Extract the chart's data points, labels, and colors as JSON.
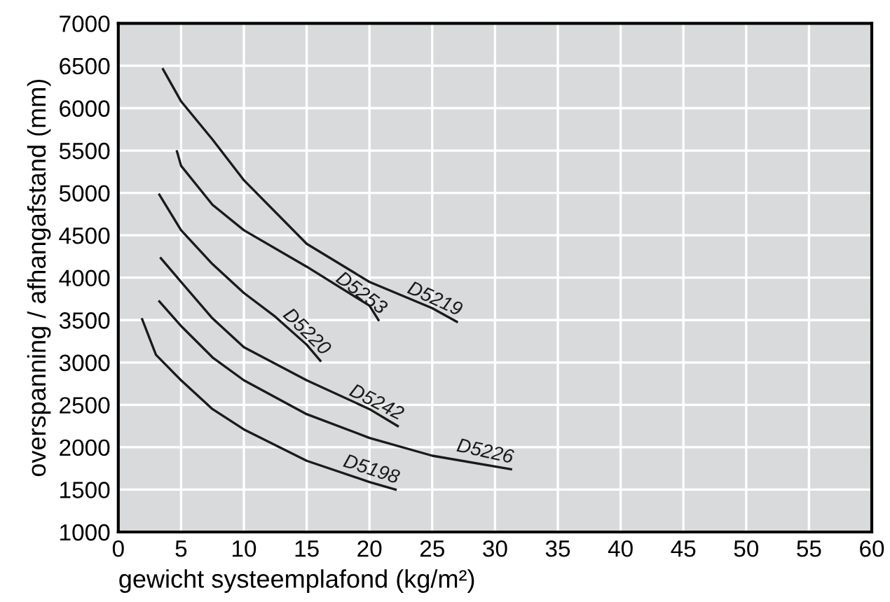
{
  "chart_data": {
    "type": "line",
    "xlabel": "gewicht systeemplafond (kg/m²)",
    "ylabel": "overspanning / afhangafstand (mm)",
    "xlim": [
      0,
      60
    ],
    "ylim": [
      1000,
      7000
    ],
    "xticks": [
      0,
      5,
      10,
      15,
      20,
      25,
      30,
      35,
      40,
      45,
      50,
      55,
      60
    ],
    "yticks": [
      1000,
      1500,
      2000,
      2500,
      3000,
      3500,
      4000,
      4500,
      5000,
      5500,
      6000,
      6500,
      7000
    ],
    "grid": true,
    "legend": false,
    "marker": "none",
    "line_style": "solid",
    "series": [
      {
        "name": "D5219",
        "color": "#1a1a1a",
        "x": [
          3.56,
          5,
          7.5,
          10,
          15,
          20,
          25,
          26.96
        ],
        "values": [
          6460,
          6080,
          5630,
          5150,
          4400,
          3950,
          3640,
          3480
        ]
      },
      {
        "name": "D5253",
        "color": "#1a1a1a",
        "x": [
          4.67,
          5,
          7.5,
          10,
          15,
          20,
          20.72
        ],
        "values": [
          5490,
          5320,
          4860,
          4560,
          4130,
          3670,
          3500
        ]
      },
      {
        "name": "D5220",
        "color": "#1a1a1a",
        "x": [
          3.27,
          5,
          7.5,
          10,
          12.5,
          15,
          16.09
        ],
        "values": [
          4980,
          4560,
          4160,
          3820,
          3540,
          3210,
          3020
        ]
      },
      {
        "name": "D5242",
        "color": "#1a1a1a",
        "x": [
          3.39,
          5,
          7.5,
          10,
          15,
          20,
          22.25
        ],
        "values": [
          4230,
          3950,
          3520,
          3180,
          2790,
          2450,
          2250
        ]
      },
      {
        "name": "D5226",
        "color": "#1a1a1a",
        "x": [
          3.27,
          5,
          7.5,
          10,
          15,
          20,
          25,
          31.27
        ],
        "values": [
          3720,
          3430,
          3060,
          2790,
          2390,
          2110,
          1900,
          1740
        ]
      },
      {
        "name": "D5198",
        "color": "#1a1a1a",
        "x": [
          1.9,
          3,
          5,
          7.5,
          10,
          15,
          20,
          22.08
        ],
        "values": [
          3510,
          3090,
          2790,
          2450,
          2210,
          1840,
          1590,
          1500
        ]
      }
    ]
  }
}
